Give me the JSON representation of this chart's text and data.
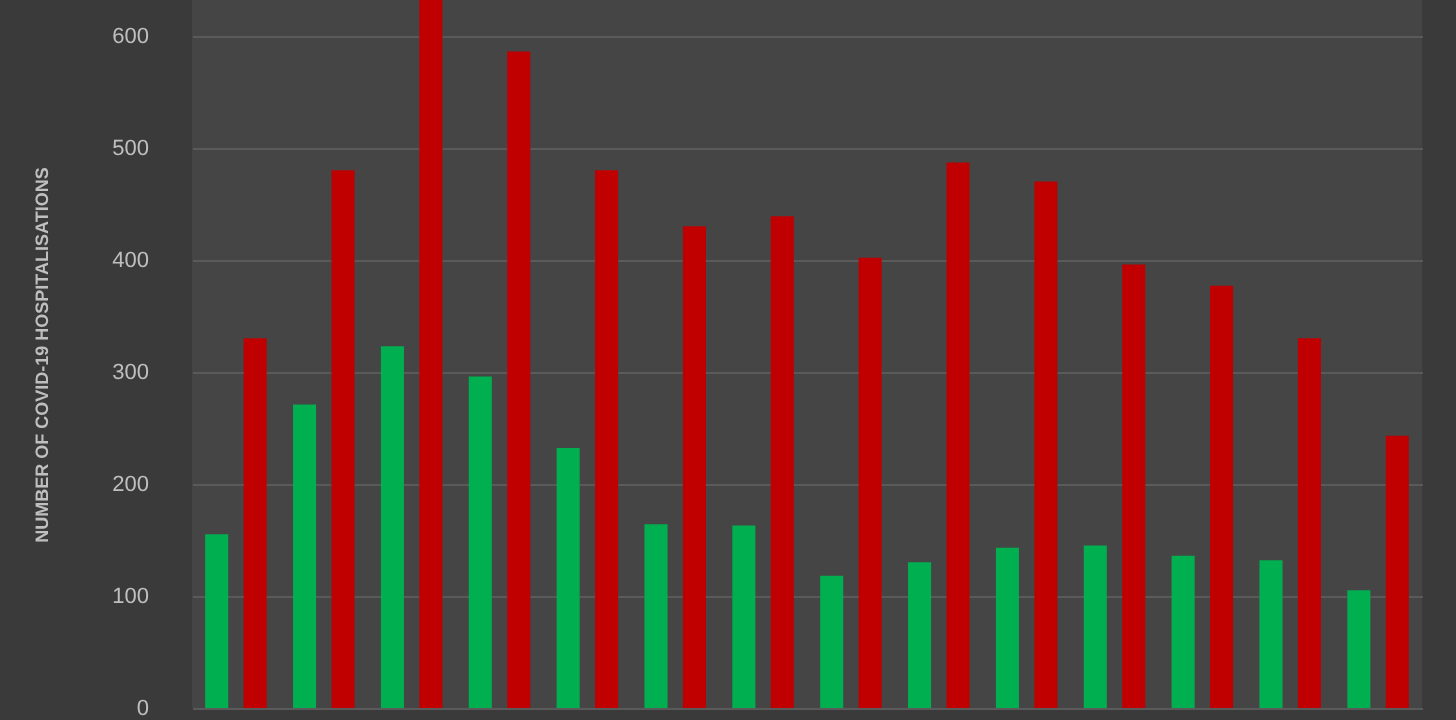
{
  "chart_data": {
    "type": "bar",
    "ylabel": "NUMBER OF COVID-19 HOSPITALISATIONS",
    "categories": [
      null,
      null,
      null,
      null,
      null,
      null,
      null,
      null,
      null,
      null,
      null,
      null,
      null,
      null
    ],
    "series": [
      {
        "color": "#00b050",
        "values": [
          155,
          271,
          323,
          296,
          232,
          164,
          163,
          118,
          130,
          143,
          145,
          136,
          132,
          105
        ]
      },
      {
        "color": "#c00000",
        "values": [
          330,
          480,
          632,
          586,
          480,
          430,
          439,
          402,
          487,
          470,
          396,
          377,
          330,
          243
        ]
      }
    ],
    "ylim": [
      0,
      632
    ],
    "yticks": [
      0,
      100,
      200,
      300,
      400,
      500,
      600
    ],
    "grid": "y"
  }
}
